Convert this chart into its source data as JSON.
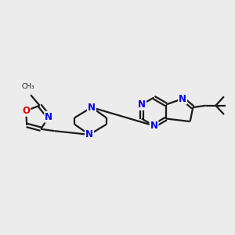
{
  "bg_color": "#ececec",
  "bond_color": "#1a1a1a",
  "N_color": "#0000ee",
  "O_color": "#dd0000",
  "lw": 1.6,
  "fs": 8.5,
  "xlim": [
    0,
    10
  ],
  "ylim": [
    2.5,
    7.5
  ]
}
